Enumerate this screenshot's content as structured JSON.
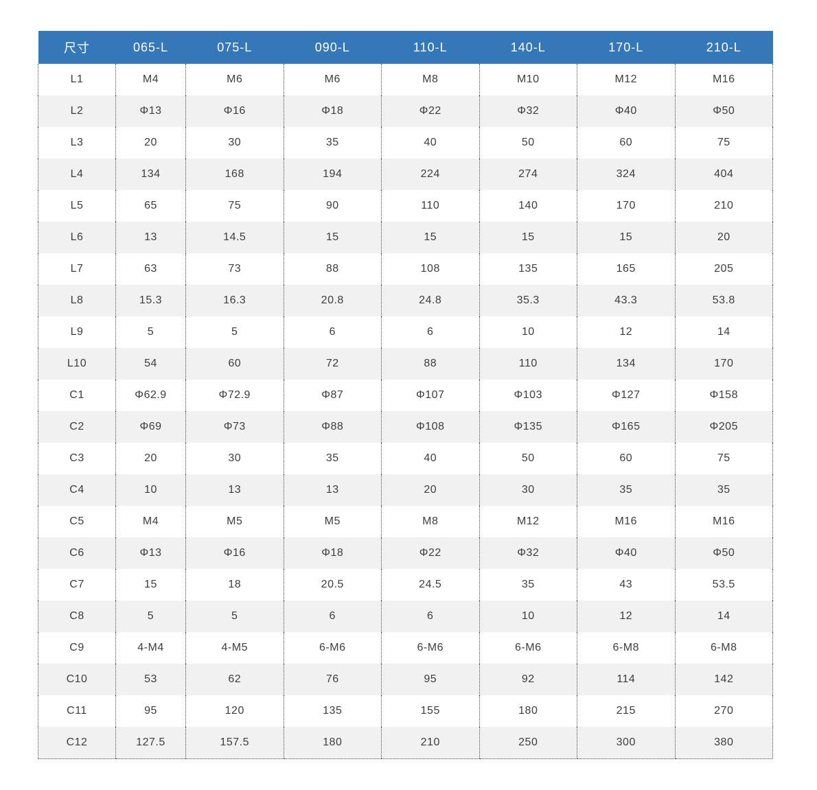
{
  "chart_data": {
    "type": "table",
    "title": "",
    "columns": [
      "尺寸",
      "065-L",
      "075-L",
      "090-L",
      "110-L",
      "140-L",
      "170-L",
      "210-L"
    ],
    "rows": [
      {
        "label": "L1",
        "values": [
          "M4",
          "M6",
          "M6",
          "M8",
          "M10",
          "M12",
          "M16"
        ]
      },
      {
        "label": "L2",
        "values": [
          "Φ13",
          "Φ16",
          "Φ18",
          "Φ22",
          "Φ32",
          "Φ40",
          "Φ50"
        ]
      },
      {
        "label": "L3",
        "values": [
          "20",
          "30",
          "35",
          "40",
          "50",
          "60",
          "75"
        ]
      },
      {
        "label": "L4",
        "values": [
          "134",
          "168",
          "194",
          "224",
          "274",
          "324",
          "404"
        ]
      },
      {
        "label": "L5",
        "values": [
          "65",
          "75",
          "90",
          "110",
          "140",
          "170",
          "210"
        ]
      },
      {
        "label": "L6",
        "values": [
          "13",
          "14.5",
          "15",
          "15",
          "15",
          "15",
          "20"
        ]
      },
      {
        "label": "L7",
        "values": [
          "63",
          "73",
          "88",
          "108",
          "135",
          "165",
          "205"
        ]
      },
      {
        "label": "L8",
        "values": [
          "15.3",
          "16.3",
          "20.8",
          "24.8",
          "35.3",
          "43.3",
          "53.8"
        ]
      },
      {
        "label": "L9",
        "values": [
          "5",
          "5",
          "6",
          "6",
          "10",
          "12",
          "14"
        ]
      },
      {
        "label": "L10",
        "values": [
          "54",
          "60",
          "72",
          "88",
          "110",
          "134",
          "170"
        ]
      },
      {
        "label": "C1",
        "values": [
          "Φ62.9",
          "Φ72.9",
          "Φ87",
          "Φ107",
          "Φ103",
          "Φ127",
          "Φ158"
        ]
      },
      {
        "label": "C2",
        "values": [
          "Φ69",
          "Φ73",
          "Φ88",
          "Φ108",
          "Φ135",
          "Φ165",
          "Φ205"
        ]
      },
      {
        "label": "C3",
        "values": [
          "20",
          "30",
          "35",
          "40",
          "50",
          "60",
          "75"
        ]
      },
      {
        "label": "C4",
        "values": [
          "10",
          "13",
          "13",
          "20",
          "30",
          "35",
          "35"
        ]
      },
      {
        "label": "C5",
        "values": [
          "M4",
          "M5",
          "M5",
          "M8",
          "M12",
          "M16",
          "M16"
        ]
      },
      {
        "label": "C6",
        "values": [
          "Φ13",
          "Φ16",
          "Φ18",
          "Φ22",
          "Φ32",
          "Φ40",
          "Φ50"
        ]
      },
      {
        "label": "C7",
        "values": [
          "15",
          "18",
          "20.5",
          "24.5",
          "35",
          "43",
          "53.5"
        ]
      },
      {
        "label": "C8",
        "values": [
          "5",
          "5",
          "6",
          "6",
          "10",
          "12",
          "14"
        ]
      },
      {
        "label": "C9",
        "values": [
          "4-M4",
          "4-M5",
          "6-M6",
          "6-M6",
          "6-M6",
          "6-M8",
          "6-M8"
        ]
      },
      {
        "label": "C10",
        "values": [
          "53",
          "62",
          "76",
          "95",
          "92",
          "114",
          "142"
        ]
      },
      {
        "label": "C11",
        "values": [
          "95",
          "120",
          "135",
          "155",
          "180",
          "215",
          "270"
        ]
      },
      {
        "label": "C12",
        "values": [
          "127.5",
          "157.5",
          "180",
          "210",
          "250",
          "300",
          "380"
        ]
      }
    ],
    "layout": {
      "striped_rows": true,
      "grid_style": "dotted-vertical",
      "header_position": "top"
    }
  },
  "colors": {
    "header_bg": "#3578b9",
    "header_text": "#ffffff",
    "stripe": "#f1f1f1",
    "grid": "#4a4a4a",
    "cell_text": "#3d3d3d"
  }
}
